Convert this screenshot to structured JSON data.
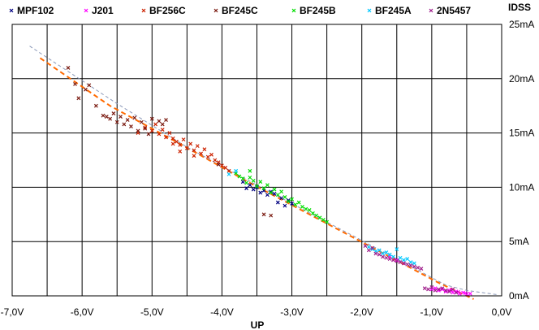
{
  "chart_data": {
    "type": "scatter",
    "xlabel": "UP",
    "ylabel": "IDSS",
    "xlim": [
      -7.0,
      0.0
    ],
    "ylim": [
      0,
      25
    ],
    "grid": true,
    "legend_position": "top",
    "x_ticks": [
      {
        "value": -7.0,
        "label": "-7,0V"
      },
      {
        "value": -6.0,
        "label": "-6,0V"
      },
      {
        "value": -5.0,
        "label": "-5,0V"
      },
      {
        "value": -4.0,
        "label": "-4,0V"
      },
      {
        "value": -3.0,
        "label": "-3,0V"
      },
      {
        "value": -2.0,
        "label": "-2,0V"
      },
      {
        "value": -1.0,
        "label": "-1,0V"
      },
      {
        "value": 0.0,
        "label": "0,0V"
      }
    ],
    "y_ticks": [
      {
        "value": 0,
        "label": "0mA"
      },
      {
        "value": 5,
        "label": "5mA"
      },
      {
        "value": 10,
        "label": "10mA"
      },
      {
        "value": 15,
        "label": "15mA"
      },
      {
        "value": 20,
        "label": "20mA"
      },
      {
        "value": 25,
        "label": "25mA"
      }
    ],
    "series": [
      {
        "name": "MPF102",
        "color": "#000080",
        "marker": "x",
        "points": [
          [
            -3.6,
            10.2
          ],
          [
            -3.55,
            9.8
          ],
          [
            -3.5,
            10.0
          ],
          [
            -3.45,
            9.5
          ],
          [
            -3.4,
            9.7
          ],
          [
            -3.35,
            9.3
          ],
          [
            -3.3,
            9.6
          ],
          [
            -3.25,
            9.4
          ],
          [
            -3.2,
            8.6
          ],
          [
            -3.15,
            9.0
          ],
          [
            -3.7,
            10.5
          ],
          [
            -3.65,
            9.9
          ],
          [
            -3.1,
            8.3
          ],
          [
            -3.05,
            8.8
          ],
          [
            -3.0,
            8.5
          ]
        ]
      },
      {
        "name": "J201",
        "color": "#ff00ff",
        "marker": "x",
        "points": [
          [
            -1.0,
            0.6
          ],
          [
            -0.95,
            0.7
          ],
          [
            -0.9,
            0.5
          ],
          [
            -0.85,
            0.6
          ],
          [
            -0.8,
            0.4
          ],
          [
            -0.75,
            0.5
          ],
          [
            -0.7,
            0.3
          ],
          [
            -0.65,
            0.4
          ],
          [
            -0.6,
            0.2
          ],
          [
            -0.55,
            0.3
          ],
          [
            -0.5,
            0.15
          ],
          [
            -0.45,
            0.2
          ],
          [
            -0.72,
            0.55
          ],
          [
            -0.62,
            0.35
          ],
          [
            -0.52,
            0.25
          ],
          [
            -1.6,
            3.6
          ],
          [
            -1.5,
            3.3
          ],
          [
            -1.4,
            3.0
          ]
        ]
      },
      {
        "name": "BF256C",
        "color": "#cc2200",
        "marker": "x",
        "points": [
          [
            -5.1,
            15.5
          ],
          [
            -5.0,
            15.2
          ],
          [
            -4.95,
            15.8
          ],
          [
            -4.9,
            14.9
          ],
          [
            -4.85,
            15.3
          ],
          [
            -4.8,
            14.6
          ],
          [
            -4.75,
            15.0
          ],
          [
            -4.7,
            14.5
          ],
          [
            -4.65,
            14.2
          ],
          [
            -4.6,
            13.9
          ],
          [
            -4.55,
            14.4
          ],
          [
            -4.5,
            13.6
          ],
          [
            -4.45,
            14.0
          ],
          [
            -4.4,
            13.4
          ],
          [
            -4.35,
            13.8
          ],
          [
            -4.3,
            13.1
          ],
          [
            -4.25,
            13.5
          ],
          [
            -4.2,
            12.8
          ],
          [
            -4.15,
            13.0
          ],
          [
            -4.1,
            12.5
          ],
          [
            -4.05,
            12.3
          ],
          [
            -4.0,
            12.0
          ],
          [
            -3.95,
            11.8
          ],
          [
            -3.9,
            11.5
          ],
          [
            -4.7,
            14.0
          ],
          [
            -4.6,
            13.3
          ],
          [
            -4.4,
            12.9
          ],
          [
            -5.2,
            15.0
          ]
        ]
      },
      {
        "name": "BF245C",
        "color": "#7a1a10",
        "marker": "x",
        "points": [
          [
            -6.2,
            21.0
          ],
          [
            -6.1,
            19.5
          ],
          [
            -6.05,
            18.2
          ],
          [
            -5.95,
            19.0
          ],
          [
            -5.9,
            19.4
          ],
          [
            -5.8,
            17.5
          ],
          [
            -5.7,
            16.6
          ],
          [
            -5.65,
            16.5
          ],
          [
            -5.6,
            16.3
          ],
          [
            -5.55,
            16.8
          ],
          [
            -5.5,
            16.0
          ],
          [
            -5.45,
            16.5
          ],
          [
            -5.4,
            15.8
          ],
          [
            -5.35,
            16.2
          ],
          [
            -5.3,
            15.6
          ],
          [
            -5.25,
            16.4
          ],
          [
            -5.2,
            15.2
          ],
          [
            -5.15,
            16.0
          ],
          [
            -5.1,
            15.4
          ],
          [
            -5.05,
            14.9
          ],
          [
            -5.0,
            16.3
          ],
          [
            -4.9,
            16.1
          ],
          [
            -4.85,
            15.8
          ],
          [
            -4.8,
            16.2
          ],
          [
            -3.4,
            7.5
          ],
          [
            -3.3,
            7.4
          ],
          [
            -4.05,
            12.1
          ]
        ]
      },
      {
        "name": "BF245B",
        "color": "#00dd00",
        "marker": "x",
        "points": [
          [
            -3.75,
            11.0
          ],
          [
            -3.7,
            10.8
          ],
          [
            -3.65,
            10.4
          ],
          [
            -3.6,
            10.9
          ],
          [
            -3.55,
            10.6
          ],
          [
            -3.5,
            10.1
          ],
          [
            -3.45,
            10.5
          ],
          [
            -3.4,
            9.9
          ],
          [
            -3.35,
            10.2
          ],
          [
            -3.3,
            9.5
          ],
          [
            -3.25,
            9.8
          ],
          [
            -3.2,
            9.3
          ],
          [
            -3.15,
            9.6
          ],
          [
            -3.1,
            9.1
          ],
          [
            -3.05,
            8.7
          ],
          [
            -3.0,
            8.9
          ],
          [
            -2.95,
            8.4
          ],
          [
            -2.9,
            8.6
          ],
          [
            -2.85,
            8.2
          ],
          [
            -2.8,
            8.0
          ],
          [
            -2.75,
            7.9
          ],
          [
            -2.7,
            7.6
          ],
          [
            -2.65,
            7.4
          ],
          [
            -2.6,
            7.2
          ],
          [
            -2.55,
            7.0
          ],
          [
            -2.5,
            6.8
          ],
          [
            -3.8,
            11.3
          ],
          [
            -3.6,
            11.5
          ]
        ]
      },
      {
        "name": "BF245A",
        "color": "#00c8ff",
        "marker": "x",
        "points": [
          [
            -1.9,
            4.5
          ],
          [
            -1.85,
            4.3
          ],
          [
            -1.8,
            4.1
          ],
          [
            -1.75,
            4.2
          ],
          [
            -1.7,
            3.9
          ],
          [
            -1.65,
            4.0
          ],
          [
            -1.6,
            3.8
          ],
          [
            -1.55,
            3.6
          ],
          [
            -1.5,
            4.3
          ],
          [
            -1.45,
            3.5
          ],
          [
            -1.4,
            3.3
          ],
          [
            -1.35,
            3.4
          ],
          [
            -1.3,
            3.1
          ],
          [
            -1.25,
            3.0
          ],
          [
            -3.8,
            11.5
          ],
          [
            -3.9,
            11.2
          ]
        ]
      },
      {
        "name": "2N5457",
        "color": "#a0208c",
        "marker": "x",
        "points": [
          [
            -1.95,
            4.6
          ],
          [
            -1.9,
            4.2
          ],
          [
            -1.85,
            4.4
          ],
          [
            -1.8,
            3.9
          ],
          [
            -1.75,
            3.8
          ],
          [
            -1.7,
            3.6
          ],
          [
            -1.65,
            3.5
          ],
          [
            -1.6,
            3.4
          ],
          [
            -1.55,
            3.3
          ],
          [
            -1.5,
            3.2
          ],
          [
            -1.45,
            3.1
          ],
          [
            -1.4,
            3.0
          ],
          [
            -1.35,
            2.9
          ],
          [
            -1.3,
            2.8
          ],
          [
            -1.25,
            2.7
          ],
          [
            -1.2,
            2.6
          ],
          [
            -1.15,
            2.5
          ],
          [
            -1.1,
            0.7
          ],
          [
            -1.05,
            0.6
          ],
          [
            -1.0,
            0.8
          ],
          [
            -0.95,
            0.5
          ],
          [
            -0.9,
            0.6
          ],
          [
            -0.85,
            0.7
          ],
          [
            -0.8,
            0.5
          ],
          [
            -0.75,
            0.4
          ],
          [
            -0.7,
            0.6
          ],
          [
            -0.65,
            0.3
          ]
        ]
      }
    ],
    "fit_lines": [
      {
        "color": "#ff6a00",
        "style": "dashed",
        "points": [
          [
            -6.6,
            21.9
          ],
          [
            -5.6,
            17.5
          ],
          [
            -4.6,
            14.0
          ],
          [
            -3.6,
            10.4
          ],
          [
            -2.6,
            7.0
          ],
          [
            -1.6,
            3.6
          ],
          [
            -0.9,
            1.2
          ],
          [
            -0.4,
            -0.3
          ]
        ]
      },
      {
        "color": "#8a98b8",
        "style": "dashed",
        "points": [
          [
            -6.75,
            23.0
          ],
          [
            -5.5,
            17.7
          ],
          [
            -4.5,
            13.7
          ],
          [
            -3.5,
            10.2
          ],
          [
            -2.5,
            6.8
          ],
          [
            -1.5,
            3.4
          ],
          [
            -0.8,
            1.0
          ],
          [
            -0.5,
            0.5
          ],
          [
            -0.05,
            0.1
          ]
        ]
      }
    ]
  }
}
